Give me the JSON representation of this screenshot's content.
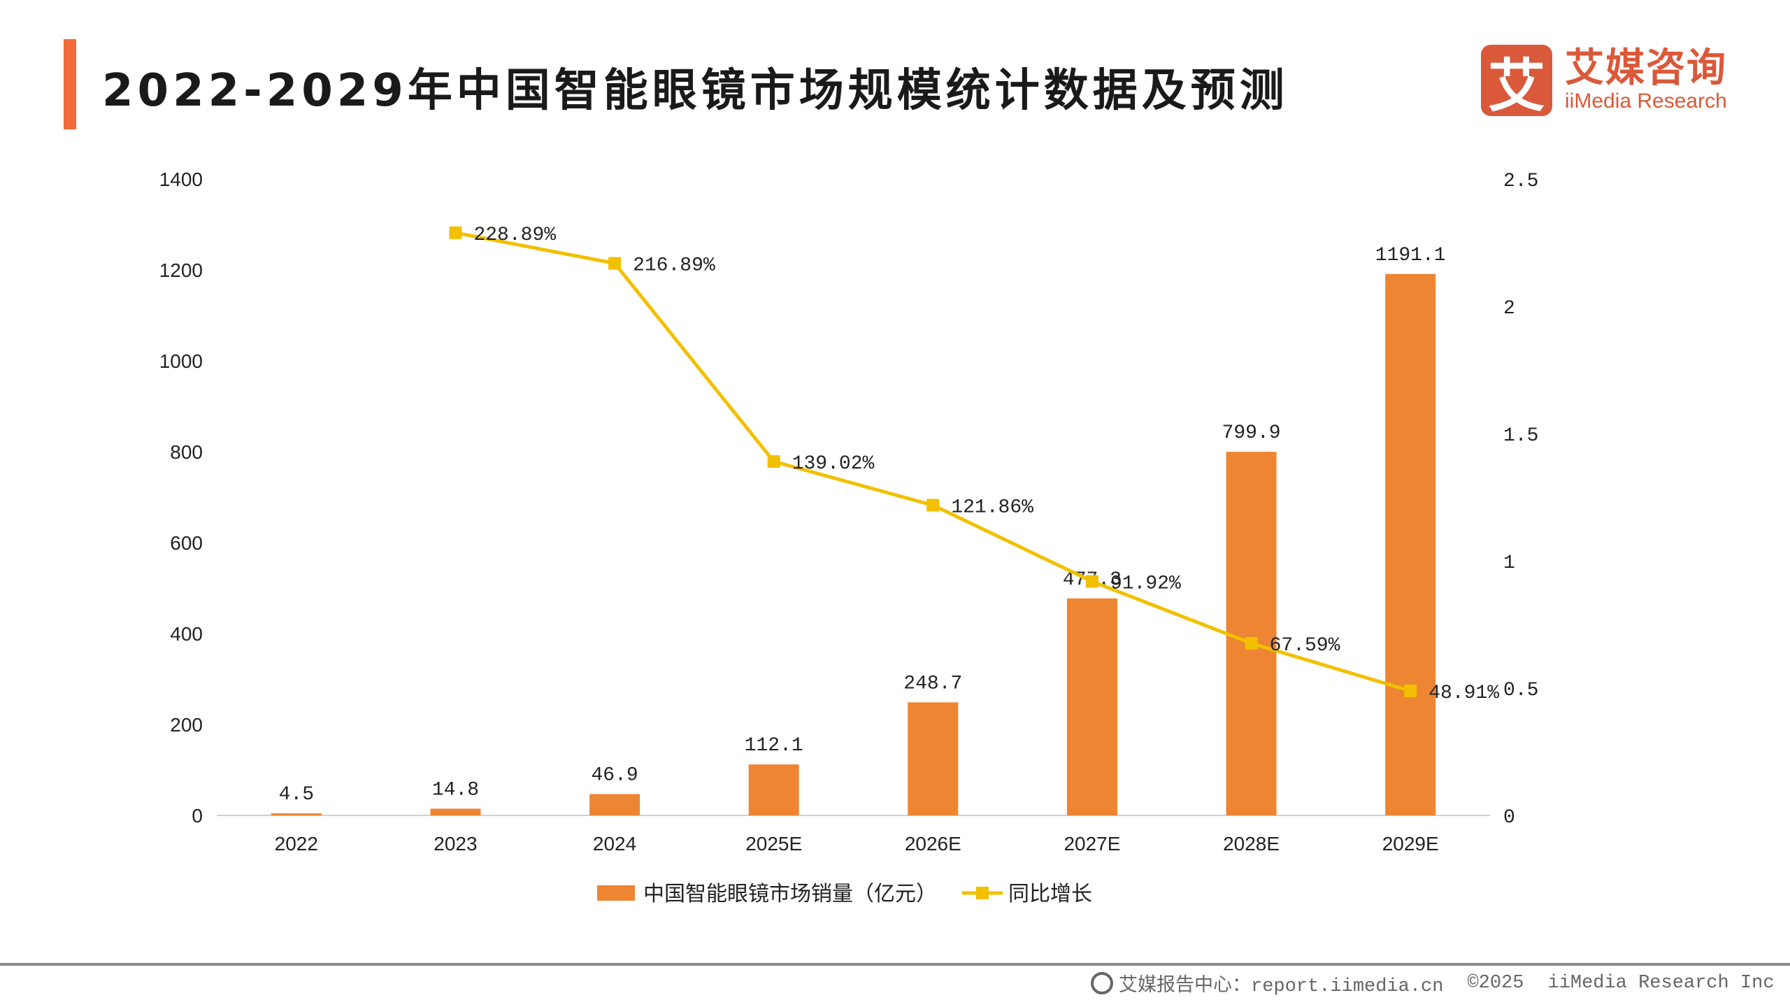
{
  "title": "2022-2029年中国智能眼镜市场规模统计数据及预测",
  "logo": {
    "cn": "艾媒咨询",
    "en": "iiMedia Research",
    "mark": "艾"
  },
  "footer": {
    "source": "艾媒报告中心：report.iimedia.cn",
    "copyright": "©2025",
    "company": "iiMedia Research Inc"
  },
  "colors": {
    "accent": "#f26b3a",
    "bar": "#ee8532",
    "line": "#f2c000",
    "brand": "#d9593a"
  },
  "chart_data": {
    "type": "bar+line",
    "categories": [
      "2022",
      "2023",
      "2024",
      "2025E",
      "2026E",
      "2027E",
      "2028E",
      "2029E"
    ],
    "series": [
      {
        "name": "中国智能眼镜市场销量（亿元）",
        "type": "bar",
        "axis": "left",
        "values": [
          4.5,
          14.8,
          46.9,
          112.1,
          248.7,
          477.3,
          799.9,
          1191.1
        ],
        "labels": [
          "4.5",
          "14.8",
          "46.9",
          "112.1",
          "248.7",
          "477.3",
          "799.9",
          "1191.1"
        ]
      },
      {
        "name": "同比增长",
        "type": "line",
        "axis": "right",
        "values": [
          null,
          2.2889,
          2.1689,
          1.3902,
          1.2186,
          0.9192,
          0.6759,
          0.4891
        ],
        "labels": [
          null,
          "228.89%",
          "216.89%",
          "139.02%",
          "121.86%",
          "91.92%",
          "67.59%",
          "48.91%"
        ]
      }
    ],
    "y_left": {
      "range": [
        0,
        1400
      ],
      "ticks": [
        "0",
        "200",
        "400",
        "600",
        "800",
        "1000",
        "1200",
        "1400"
      ]
    },
    "y_right": {
      "range": [
        0,
        2.5
      ],
      "ticks": [
        "0",
        "0.5",
        "1",
        "1.5",
        "2",
        "2.5"
      ]
    },
    "grid": false,
    "legend": "bottom"
  }
}
